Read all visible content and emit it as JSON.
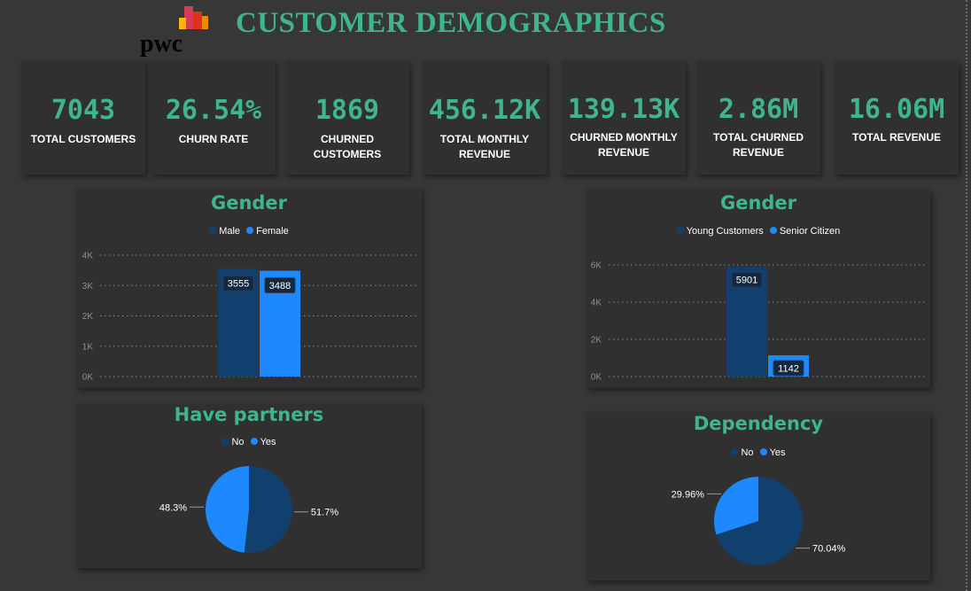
{
  "header": {
    "title": "CUSTOMER DEMOGRAPHICS",
    "logo_text": "pwc"
  },
  "colors": {
    "accent": "#3fb58c",
    "series_dark": "#12406e",
    "series_light": "#1e88ff"
  },
  "kpis": [
    {
      "value": "7043",
      "label": "TOTAL CUSTOMERS"
    },
    {
      "value": "26.54%",
      "label": "CHURN RATE"
    },
    {
      "value": "1869",
      "label": "CHURNED CUSTOMERS"
    },
    {
      "value": "456.12K",
      "label": "TOTAL MONTHLY REVENUE"
    },
    {
      "value": "139.13K",
      "label": "CHURNED MONTHLY REVENUE"
    },
    {
      "value": "2.86M",
      "label": "TOTAL CHURNED REVENUE"
    },
    {
      "value": "16.06M",
      "label": "TOTAL REVENUE"
    }
  ],
  "chart_data": [
    {
      "type": "bar",
      "title": "Gender",
      "categories": [
        "Male",
        "Female"
      ],
      "values": [
        3555,
        3488
      ],
      "data_labels": [
        "3555",
        "3488"
      ],
      "yticks": [
        "0K",
        "1K",
        "2K",
        "3K",
        "4K"
      ],
      "ylim": [
        0,
        4000
      ],
      "legend": [
        "Male",
        "Female"
      ],
      "legend_position": "top-center",
      "grid": true
    },
    {
      "type": "bar",
      "title": "Gender",
      "categories": [
        "Young Customers",
        "Senior Citizen"
      ],
      "values": [
        5901,
        1142
      ],
      "data_labels": [
        "5901",
        "1142"
      ],
      "yticks": [
        "0K",
        "2K",
        "4K",
        "6K"
      ],
      "ylim": [
        0,
        6000
      ],
      "legend": [
        "Young Customers",
        "Senior Citizen"
      ],
      "legend_position": "top-center",
      "grid": true
    },
    {
      "type": "pie",
      "title": "Have partners",
      "categories": [
        "No",
        "Yes"
      ],
      "values": [
        51.7,
        48.3
      ],
      "data_labels": [
        "51.7%",
        "48.3%"
      ],
      "legend": [
        "No",
        "Yes"
      ],
      "legend_position": "top-center"
    },
    {
      "type": "pie",
      "title": "Dependency",
      "categories": [
        "No",
        "Yes"
      ],
      "values": [
        70.04,
        29.96
      ],
      "data_labels": [
        "70.04%",
        "29.96%"
      ],
      "legend": [
        "No",
        "Yes"
      ],
      "legend_position": "top-center"
    }
  ]
}
